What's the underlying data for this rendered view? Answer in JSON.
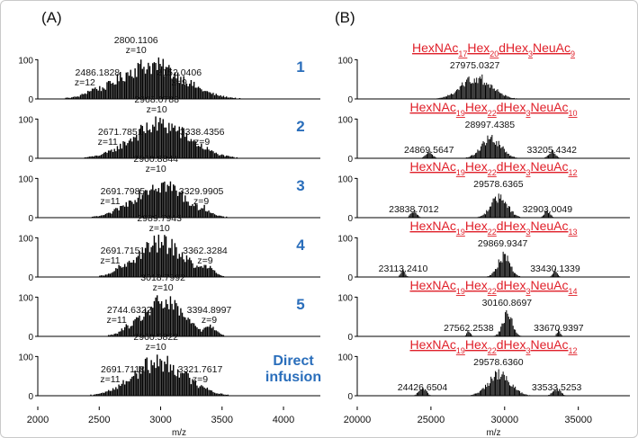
{
  "chart_data": [
    {
      "type": "line",
      "panel_label": "(A)",
      "xlabel": "m/z",
      "xlim": [
        2000,
        4300
      ],
      "xticks": [
        2000,
        2500,
        3000,
        3500,
        4000
      ],
      "ylim": [
        0,
        110
      ],
      "yticks": [
        0,
        100
      ],
      "traces": [
        {
          "name": "1",
          "center": 2920,
          "width": 260,
          "peaks": [
            {
              "mz": "2800.1106",
              "z": "z=10",
              "x": 2800
            },
            {
              "mz": "3152.0406",
              "z": "z=9",
              "x": 3152
            },
            {
              "mz": "2486.1828",
              "z": "z=12",
              "x": 2486
            }
          ]
        },
        {
          "name": "2",
          "center": 3000,
          "width": 230,
          "peaks": [
            {
              "mz": "2968.0788",
              "z": "z=10",
              "x": 2968
            },
            {
              "mz": "3338.4356",
              "z": "z=9",
              "x": 3338
            },
            {
              "mz": "2671.7851",
              "z": "z=11",
              "x": 2672
            }
          ]
        },
        {
          "name": "3",
          "center": 2990,
          "width": 200,
          "peaks": [
            {
              "mz": "2960.8844",
              "z": "z=10",
              "x": 2961
            },
            {
              "mz": "3329.9905",
              "z": "z=9",
              "x": 3330
            },
            {
              "mz": "2691.7985",
              "z": "z=11",
              "x": 2692
            }
          ]
        },
        {
          "name": "4",
          "center": 3000,
          "width": 190,
          "peaks": [
            {
              "mz": "2989.7943",
              "z": "z=10",
              "x": 2990
            },
            {
              "mz": "3362.3284",
              "z": "z=9",
              "x": 3362
            },
            {
              "mz": "2691.7151",
              "z": "z=11",
              "x": 2692
            }
          ]
        },
        {
          "name": "5",
          "center": 3020,
          "width": 170,
          "peaks": [
            {
              "mz": "3018.7992",
              "z": "z=10",
              "x": 3019
            },
            {
              "mz": "3394.8997",
              "z": "z=9",
              "x": 3395
            },
            {
              "mz": "2744.6322",
              "z": "z=11",
              "x": 2745
            }
          ]
        },
        {
          "name": "Direct infusion",
          "center": 2990,
          "width": 210,
          "peaks": [
            {
              "mz": "2960.5822",
              "z": "z=10",
              "x": 2961
            },
            {
              "mz": "3321.7617",
              "z": "z=9",
              "x": 3322
            },
            {
              "mz": "2691.7118",
              "z": "z=11",
              "x": 2692
            }
          ]
        }
      ]
    },
    {
      "type": "line",
      "panel_label": "(B)",
      "xlabel": "m/z",
      "xlim": [
        20000,
        38500
      ],
      "xticks": [
        20000,
        25000,
        30000,
        35000
      ],
      "ylim": [
        0,
        110
      ],
      "yticks": [
        0,
        100
      ],
      "traces": [
        {
          "composition": [
            [
              "HexNAc",
              "17"
            ],
            [
              "Hex",
              "20"
            ],
            [
              "dHex",
              "3"
            ],
            [
              "NeuAc",
              "9"
            ]
          ],
          "center": 28100,
          "width": 1000,
          "peaks": [
            {
              "mz": "27975.0327",
              "x": 27975
            }
          ]
        },
        {
          "composition": [
            [
              "HexNAc",
              "19"
            ],
            [
              "Hex",
              "22"
            ],
            [
              "dHex",
              "3"
            ],
            [
              "NeuAc",
              "10"
            ]
          ],
          "center": 29100,
          "width": 650,
          "peaks": [
            {
              "mz": "28997.4385",
              "x": 28997
            },
            {
              "mz": "24869.5647",
              "x": 24870
            },
            {
              "mz": "33205.4342",
              "x": 33205
            }
          ]
        },
        {
          "composition": [
            [
              "HexNAc",
              "19"
            ],
            [
              "Hex",
              "22"
            ],
            [
              "dHex",
              "3"
            ],
            [
              "NeuAc",
              "12"
            ]
          ],
          "center": 29650,
          "width": 550,
          "peaks": [
            {
              "mz": "29578.6365",
              "x": 29579
            },
            {
              "mz": "23838.7012",
              "x": 23839
            },
            {
              "mz": "32903.0049",
              "x": 32903
            }
          ]
        },
        {
          "composition": [
            [
              "HexNAc",
              "19"
            ],
            [
              "Hex",
              "22"
            ],
            [
              "dHex",
              "3"
            ],
            [
              "NeuAc",
              "13"
            ]
          ],
          "center": 29950,
          "width": 420,
          "peaks": [
            {
              "mz": "29869.9347",
              "x": 29870
            },
            {
              "mz": "23113.2410",
              "x": 23113
            },
            {
              "mz": "33430.1339",
              "x": 33430
            }
          ]
        },
        {
          "composition": [
            [
              "HexNAc",
              "19"
            ],
            [
              "Hex",
              "22"
            ],
            [
              "dHex",
              "3"
            ],
            [
              "NeuAc",
              "14"
            ]
          ],
          "center": 30200,
          "width": 330,
          "peaks": [
            {
              "mz": "30160.8697",
              "x": 30161
            },
            {
              "mz": "27562.2538",
              "x": 27562
            },
            {
              "mz": "33670.9397",
              "x": 33671
            }
          ]
        },
        {
          "composition": [
            [
              "HexNAc",
              "19"
            ],
            [
              "Hex",
              "22"
            ],
            [
              "dHex",
              "3"
            ],
            [
              "NeuAc",
              "12"
            ]
          ],
          "center": 29650,
          "width": 750,
          "peaks": [
            {
              "mz": "29578.6360",
              "x": 29578
            },
            {
              "mz": "24426.6504",
              "x": 24427
            },
            {
              "mz": "33533.5253",
              "x": 33534
            }
          ]
        }
      ]
    }
  ],
  "colors": {
    "spectrum": "#000000",
    "trace_label": "#2a6ebb",
    "composition": "#e0202a",
    "axis": "#000000",
    "text": "#111111"
  }
}
